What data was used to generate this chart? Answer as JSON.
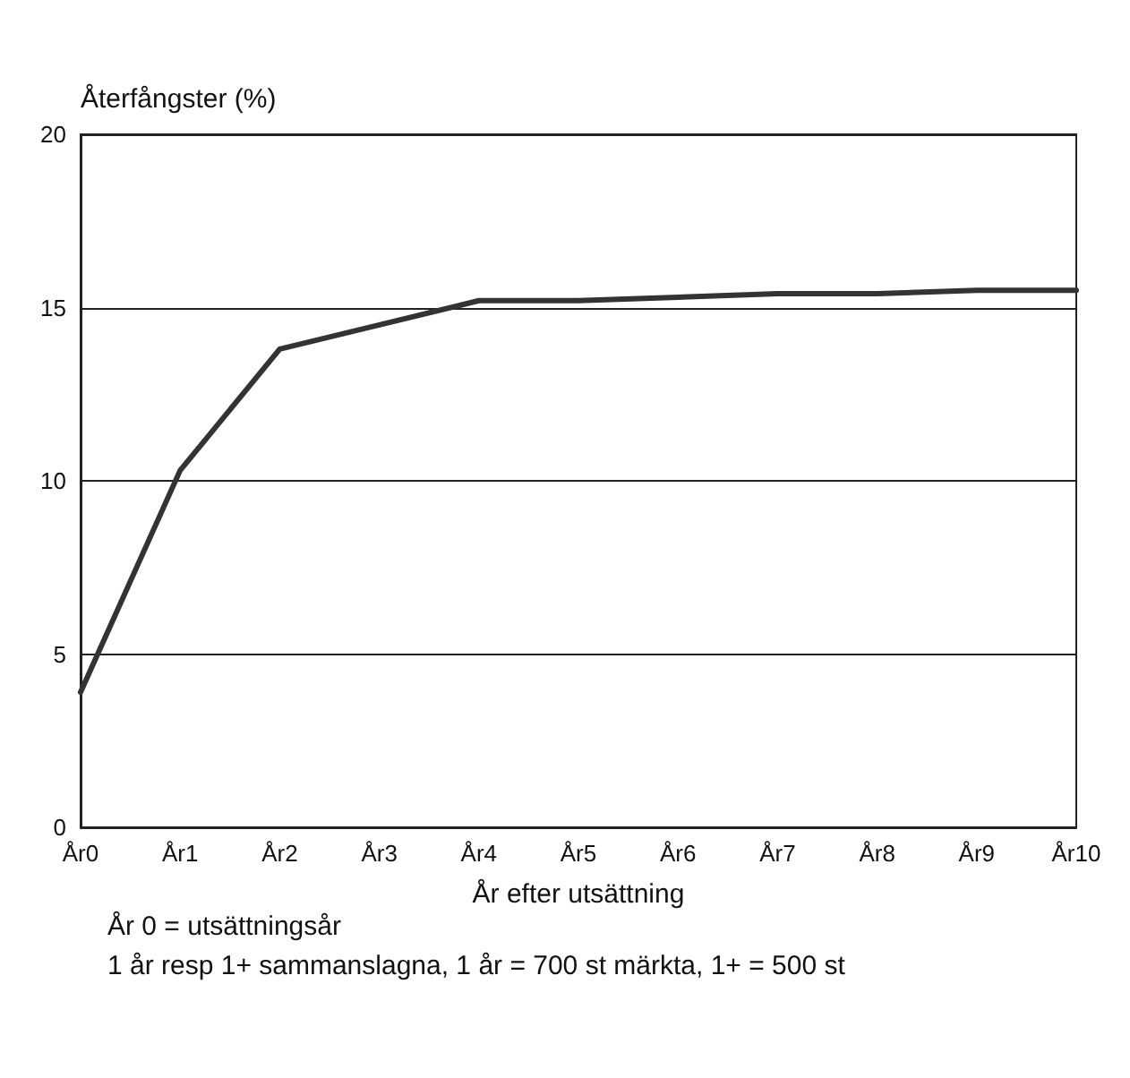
{
  "chart_data": {
    "type": "line",
    "ylabel": "Återfångster (%)",
    "xlabel": "År efter utsättning",
    "categories": [
      "År0",
      "År1",
      "År2",
      "År3",
      "År4",
      "År5",
      "År6",
      "År7",
      "År8",
      "År9",
      "År10"
    ],
    "series": [
      {
        "color": "#333333",
        "values": [
          3.9,
          10.3,
          13.8,
          14.5,
          15.2,
          15.2,
          15.3,
          15.4,
          15.4,
          15.5,
          15.5
        ]
      }
    ],
    "ylim": [
      0,
      20
    ],
    "yticks": [
      0,
      5,
      10,
      15,
      20
    ],
    "grid": "y",
    "marker": "none",
    "line_style": "solid",
    "annotations": [
      "År 0 = utsättningsår",
      "1 år resp 1+ sammanslagna, 1 år = 700 st märkta, 1+ = 500 st"
    ]
  }
}
